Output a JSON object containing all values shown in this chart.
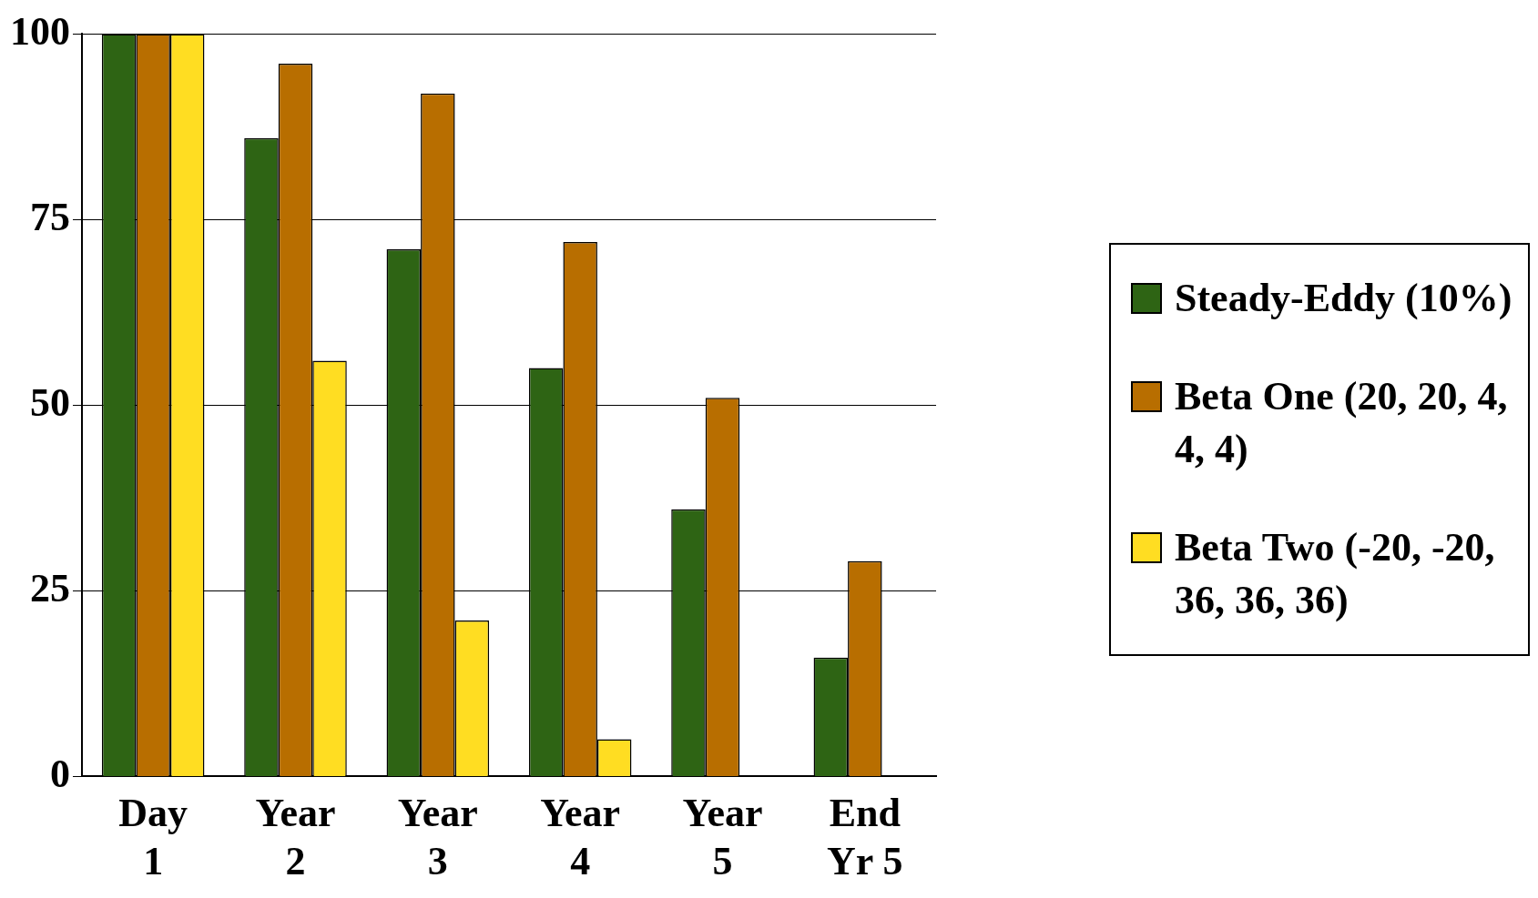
{
  "chart_data": {
    "type": "bar",
    "categories": [
      "Day 1",
      "Year 2",
      "Year 3",
      "Year 4",
      "Year 5",
      "End Yr 5"
    ],
    "series": [
      {
        "name": "Steady-Eddy (10%)",
        "color": "#2e6414",
        "values": [
          100,
          86,
          71,
          55,
          36,
          16
        ]
      },
      {
        "name": "Beta One (20, 20, 4, 4, 4)",
        "color": "#b86e00",
        "values": [
          100,
          96,
          92,
          72,
          51,
          29
        ]
      },
      {
        "name": "Beta Two (-20, -20, 36, 36, 36)",
        "color": "#ffdd22",
        "values": [
          100,
          56,
          21,
          5,
          0,
          0
        ]
      }
    ],
    "ylim": [
      0,
      100
    ],
    "yticks": [
      0,
      25,
      50,
      75,
      100
    ],
    "grid": "y",
    "legend": "right"
  }
}
